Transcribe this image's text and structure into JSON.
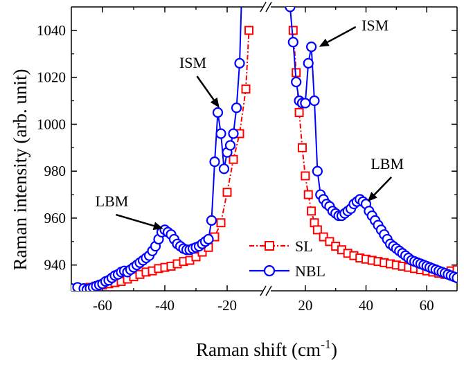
{
  "chart_data": {
    "type": "scatter",
    "xlabel_main": "Raman shift (cm",
    "xlabel_sup": "-1",
    "xlabel_close": ")",
    "ylabel": "Raman intensity (arb. unit)",
    "xlim_left": [
      -70,
      -10
    ],
    "xlim_right": [
      10,
      70
    ],
    "ylim": [
      929,
      1050
    ],
    "yticks": [
      940,
      960,
      980,
      1000,
      1020,
      1040
    ],
    "xticks_left": [
      -60,
      -40,
      -20
    ],
    "xticks_right": [
      20,
      40,
      60
    ],
    "legend_position": "lower-center",
    "annotations": [
      {
        "text": "ISM",
        "x": -31,
        "y": 1024,
        "arrow_to": [
          -22.5,
          1007
        ]
      },
      {
        "text": "LBM",
        "x": -57,
        "y": 965,
        "arrow_to": [
          -40.5,
          955.5
        ]
      },
      {
        "text": "ISM",
        "x": 43,
        "y": 1040,
        "arrow_to": [
          24.5,
          1033
        ]
      },
      {
        "text": "LBM",
        "x": 47,
        "y": 981,
        "arrow_to": [
          40.5,
          967
        ]
      }
    ],
    "series": [
      {
        "name": "SL",
        "color": "#ff0000",
        "marker": "square",
        "left": {
          "x": [
            -68,
            -66,
            -64,
            -62,
            -60,
            -58,
            -56,
            -54,
            -52,
            -50,
            -48,
            -46,
            -44,
            -42,
            -40,
            -38,
            -36,
            -34,
            -32,
            -30,
            -28,
            -26,
            -24,
            -22,
            -20,
            -18,
            -16,
            -14,
            -13
          ],
          "y": [
            929.5,
            930,
            930.5,
            931,
            931.5,
            932,
            932.5,
            933,
            934,
            935,
            936,
            937,
            937.5,
            938.5,
            939,
            939.5,
            940.5,
            941.5,
            942,
            943.5,
            945.5,
            947.5,
            952,
            958,
            971,
            985,
            996,
            1015,
            1040
          ]
        },
        "right": {
          "x": [
            16,
            17,
            18,
            19,
            20,
            21,
            22,
            23,
            24,
            26,
            28,
            30,
            32,
            34,
            36,
            38,
            40,
            42,
            44,
            46,
            48,
            50,
            52,
            54,
            56,
            58,
            60,
            62,
            64,
            66,
            68,
            70
          ],
          "y": [
            1040,
            1022,
            1005,
            990,
            978,
            970,
            963,
            958,
            955,
            952,
            950,
            948,
            946.5,
            945,
            944,
            943,
            942.5,
            942,
            941.5,
            941,
            940.5,
            940,
            939.5,
            939,
            938.5,
            938,
            937.5,
            937,
            936.5,
            936,
            937.5,
            938
          ]
        }
      },
      {
        "name": "NBL",
        "color": "#0000ff",
        "marker": "circle",
        "left": {
          "x": [
            -70,
            -68,
            -66,
            -65,
            -64,
            -63,
            -62,
            -61,
            -60,
            -59,
            -58,
            -57,
            -56,
            -55,
            -54,
            -53,
            -52,
            -51,
            -50,
            -49,
            -48,
            -47,
            -46,
            -45,
            -44,
            -43,
            -42,
            -41,
            -40,
            -39,
            -38,
            -37,
            -36,
            -35,
            -34,
            -33,
            -32,
            -31,
            -30,
            -29,
            -28,
            -27,
            -26,
            -25,
            -24,
            -23,
            -22,
            -21,
            -20,
            -19,
            -18,
            -17,
            -16,
            -15,
            -14.5
          ],
          "y": [
            930,
            930.5,
            930,
            929.5,
            930,
            930.5,
            931,
            931.5,
            932,
            933,
            933.5,
            934.5,
            935.5,
            936,
            937,
            937.5,
            937,
            938,
            939,
            940,
            941,
            942,
            943,
            944,
            946,
            948,
            951,
            954,
            955,
            954,
            953,
            951,
            949,
            948,
            947,
            946.5,
            946.5,
            947,
            947.5,
            948,
            949,
            950,
            951,
            959,
            984,
            1005,
            996,
            981,
            988,
            991,
            996,
            1007,
            1026,
            1070,
            1080
          ]
        },
        "right": {
          "x": [
            14,
            15,
            16,
            17,
            18,
            19,
            20,
            21,
            22,
            23,
            24,
            25,
            26,
            27,
            28,
            29,
            30,
            31,
            32,
            33,
            34,
            35,
            36,
            37,
            38,
            39,
            40,
            41,
            42,
            43,
            44,
            45,
            46,
            47,
            48,
            49,
            50,
            51,
            52,
            53,
            54,
            55,
            56,
            57,
            58,
            59,
            60,
            61,
            62,
            63,
            64,
            65,
            66,
            67,
            68,
            69,
            70
          ],
          "y": [
            1070,
            1050,
            1035,
            1018,
            1010,
            1009,
            1009,
            1026,
            1033,
            1010,
            980,
            970,
            968,
            966,
            965,
            963,
            962,
            961,
            961,
            962,
            963,
            964,
            966,
            967,
            968,
            967,
            966,
            963,
            961,
            959,
            957,
            955,
            953,
            951,
            949,
            948,
            947,
            946,
            945,
            944,
            943,
            942,
            941.5,
            941,
            940.5,
            940,
            939.5,
            939,
            938.5,
            938,
            937.5,
            937,
            936.5,
            936,
            935.5,
            935,
            934.5
          ]
        }
      }
    ]
  }
}
